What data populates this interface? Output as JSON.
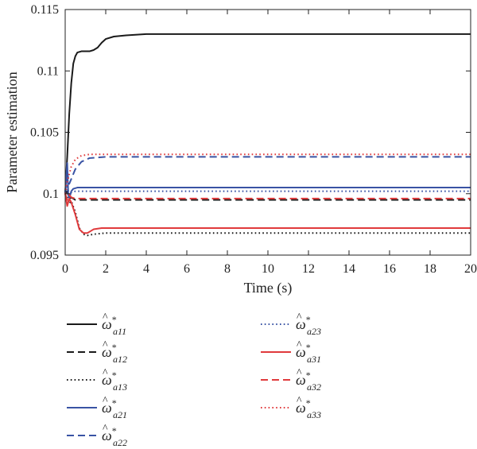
{
  "chart_data": {
    "type": "line",
    "xlabel": "Time (s)",
    "ylabel": "Parameter estimation",
    "xlim": [
      0,
      20
    ],
    "ylim": [
      0.095,
      0.115
    ],
    "x_ticks": [
      "0",
      "2",
      "4",
      "6",
      "8",
      "10",
      "12",
      "14",
      "16",
      "18",
      "20"
    ],
    "y_ticks": [
      "0.095",
      "0.1",
      "0.105",
      "0.11",
      "0.115"
    ],
    "grid": false,
    "legend_position": "below",
    "series": [
      {
        "name": "ω̂*a11",
        "symbol": "ω",
        "sub": "a11",
        "color": "#1a1a1a",
        "dash": "solid",
        "x": [
          0.0,
          0.1,
          0.2,
          0.3,
          0.4,
          0.5,
          0.6,
          0.8,
          1.0,
          1.2,
          1.4,
          1.6,
          1.8,
          2.0,
          2.4,
          3.0,
          4.0,
          6.0,
          20.0
        ],
        "y": [
          0.1,
          0.103,
          0.1065,
          0.109,
          0.1106,
          0.1112,
          0.1115,
          0.1116,
          0.1116,
          0.1116,
          0.1117,
          0.1119,
          0.1123,
          0.1126,
          0.1128,
          0.1129,
          0.113,
          0.113,
          0.113
        ]
      },
      {
        "name": "ω̂*a12",
        "symbol": "ω",
        "sub": "a12",
        "color": "#1a1a1a",
        "dash": "dash",
        "x": [
          0.0,
          0.1,
          0.2,
          0.3,
          0.5,
          0.8,
          1.2,
          2.0,
          20.0
        ],
        "y": [
          0.1,
          0.1002,
          0.0996,
          0.0997,
          0.0995,
          0.0995,
          0.0995,
          0.0995,
          0.0995
        ]
      },
      {
        "name": "ω̂*a13",
        "symbol": "ω",
        "sub": "a13",
        "color": "#1a1a1a",
        "dash": "dot",
        "x": [
          0.0,
          0.1,
          0.2,
          0.3,
          0.5,
          0.7,
          0.9,
          1.1,
          1.4,
          2.0,
          3.0,
          20.0
        ],
        "y": [
          0.1,
          0.0997,
          0.0992,
          0.0994,
          0.0985,
          0.0972,
          0.0967,
          0.0966,
          0.0967,
          0.0968,
          0.0968,
          0.0968
        ]
      },
      {
        "name": "ω̂*a21",
        "symbol": "ω",
        "sub": "a21",
        "color": "#3953a4",
        "dash": "solid",
        "x": [
          0.0,
          0.1,
          0.15,
          0.2,
          0.3,
          0.4,
          0.6,
          1.0,
          2.0,
          20.0
        ],
        "y": [
          0.1,
          0.1025,
          0.1,
          0.0996,
          0.1002,
          0.1004,
          0.1005,
          0.1005,
          0.1005,
          0.1005
        ]
      },
      {
        "name": "ω̂*a22",
        "symbol": "ω",
        "sub": "a22",
        "color": "#3953a4",
        "dash": "dash",
        "x": [
          0.0,
          0.1,
          0.2,
          0.3,
          0.5,
          0.8,
          1.2,
          2.0,
          20.0
        ],
        "y": [
          0.1,
          0.1018,
          0.1008,
          0.1012,
          0.102,
          0.1026,
          0.1029,
          0.103,
          0.103
        ]
      },
      {
        "name": "ω̂*a23",
        "symbol": "ω",
        "sub": "a23",
        "color": "#3953a4",
        "dash": "dot",
        "x": [
          0.0,
          0.1,
          0.2,
          0.3,
          0.5,
          1.0,
          2.0,
          20.0
        ],
        "y": [
          0.1,
          0.1006,
          0.0999,
          0.1001,
          0.1002,
          0.1002,
          0.1002,
          0.1002
        ]
      },
      {
        "name": "ω̂*a31",
        "symbol": "ω",
        "sub": "a31",
        "color": "#e03a3c",
        "dash": "solid",
        "x": [
          0.0,
          0.1,
          0.2,
          0.3,
          0.5,
          0.7,
          0.9,
          1.1,
          1.4,
          1.8,
          2.5,
          3.5,
          20.0
        ],
        "y": [
          0.1,
          0.099,
          0.0996,
          0.0993,
          0.0983,
          0.0971,
          0.0968,
          0.0968,
          0.0971,
          0.0972,
          0.0972,
          0.0972,
          0.0972
        ]
      },
      {
        "name": "ω̂*a32",
        "symbol": "ω",
        "sub": "a32",
        "color": "#e03a3c",
        "dash": "dash",
        "x": [
          0.0,
          0.1,
          0.2,
          0.3,
          0.5,
          0.8,
          1.2,
          2.0,
          20.0
        ],
        "y": [
          0.1,
          0.0995,
          0.0999,
          0.0997,
          0.0996,
          0.0996,
          0.0996,
          0.0996,
          0.0996
        ]
      },
      {
        "name": "ω̂*a33",
        "symbol": "ω",
        "sub": "a33",
        "color": "#e03a3c",
        "dash": "dot",
        "x": [
          0.0,
          0.1,
          0.2,
          0.3,
          0.5,
          0.8,
          1.2,
          2.0,
          20.0
        ],
        "y": [
          0.1,
          0.101,
          0.1016,
          0.1022,
          0.1028,
          0.1031,
          0.1032,
          0.1032,
          0.1032
        ]
      }
    ]
  }
}
